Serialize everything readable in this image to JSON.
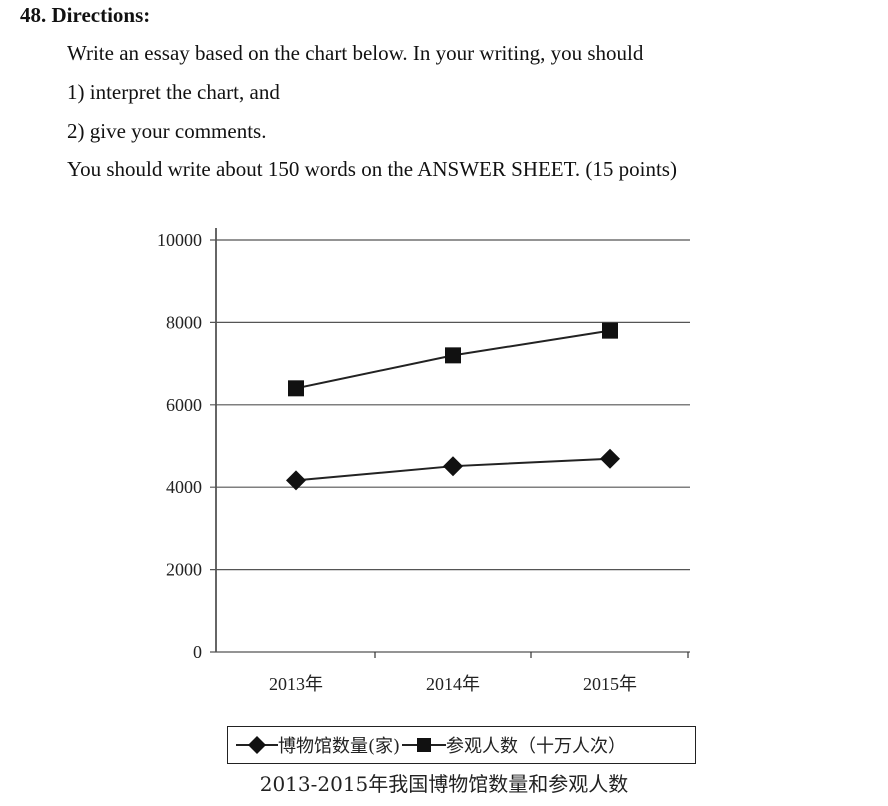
{
  "question": {
    "heading": "48. Directions:",
    "lines": [
      "Write an essay based on the chart below. In your writing, you should",
      "1) interpret the chart, and",
      "2) give your comments.",
      "You should write about 150 words on the ANSWER SHEET. (15 points)"
    ]
  },
  "chart_data": {
    "type": "line",
    "title": "2013-2015年我国博物馆数量和参观人数",
    "categories": [
      "2013年",
      "2014年",
      "2015年"
    ],
    "series": [
      {
        "name": "博物馆数量(家)",
        "marker": "diamond",
        "values": [
          4165,
          4510,
          4692
        ]
      },
      {
        "name": "参观人数（十万人次）",
        "marker": "square",
        "values": [
          6400,
          7200,
          7800
        ]
      }
    ],
    "yticks": [
      "0",
      "2000",
      "4000",
      "6000",
      "8000",
      "10000"
    ],
    "ylim": [
      0,
      10000
    ],
    "grid": true,
    "legend_position": "bottom"
  },
  "colors": {
    "line": "#222222",
    "grid": "#555555",
    "text": "#111111"
  }
}
